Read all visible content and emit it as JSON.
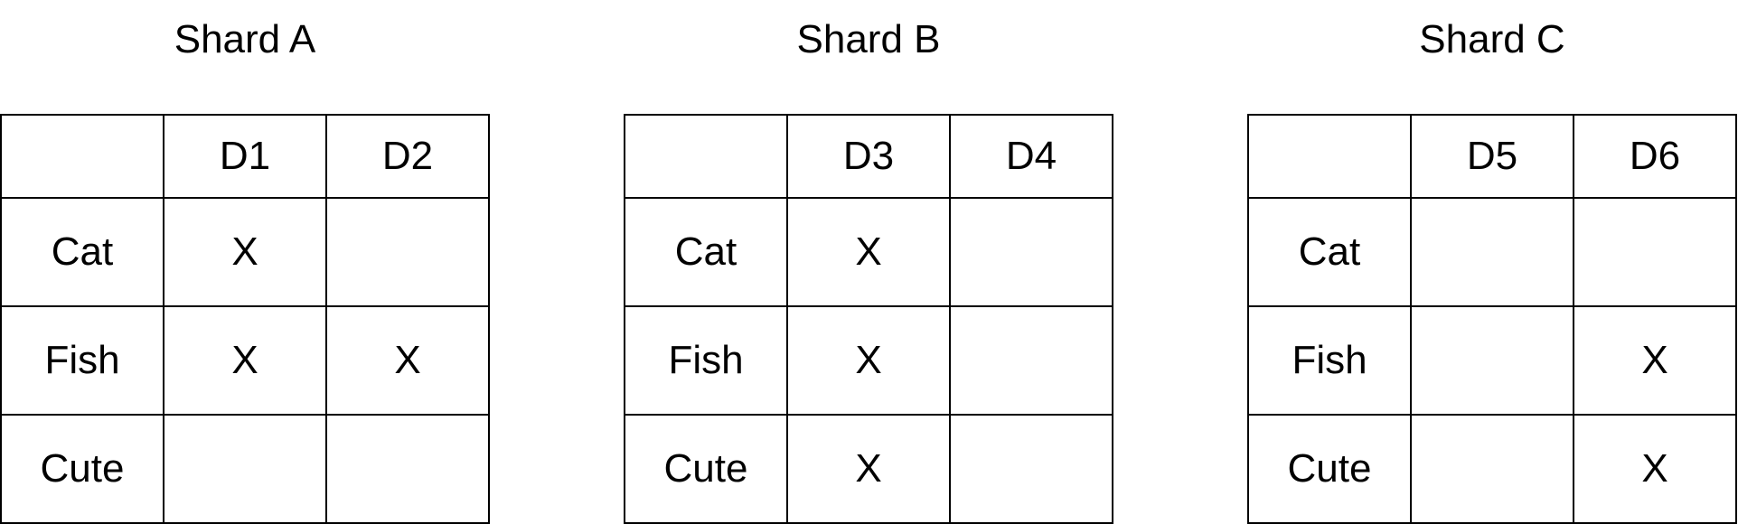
{
  "shards": [
    {
      "title": "Shard A",
      "columns": [
        "",
        "D1",
        "D2"
      ],
      "rows": [
        {
          "term": "Cat",
          "cells": [
            "X",
            ""
          ]
        },
        {
          "term": "Fish",
          "cells": [
            "X",
            "X"
          ]
        },
        {
          "term": "Cute",
          "cells": [
            "",
            ""
          ]
        }
      ]
    },
    {
      "title": "Shard B",
      "columns": [
        "",
        "D3",
        "D4"
      ],
      "rows": [
        {
          "term": "Cat",
          "cells": [
            "X",
            ""
          ]
        },
        {
          "term": "Fish",
          "cells": [
            "X",
            ""
          ]
        },
        {
          "term": "Cute",
          "cells": [
            "X",
            ""
          ]
        }
      ]
    },
    {
      "title": "Shard C",
      "columns": [
        "",
        "D5",
        "D6"
      ],
      "rows": [
        {
          "term": "Cat",
          "cells": [
            "",
            ""
          ]
        },
        {
          "term": "Fish",
          "cells": [
            "",
            "X"
          ]
        },
        {
          "term": "Cute",
          "cells": [
            "",
            "X"
          ]
        }
      ]
    }
  ]
}
